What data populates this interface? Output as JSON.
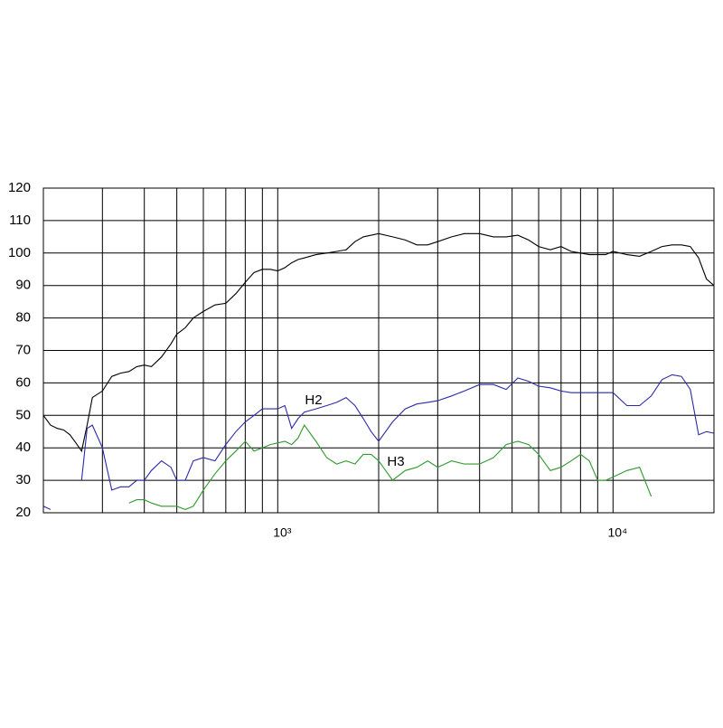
{
  "chart_data": {
    "type": "line",
    "log_x": true,
    "grid": true,
    "xlim": [
      200,
      20000
    ],
    "ylim": [
      20,
      120
    ],
    "yticks": [
      20,
      30,
      40,
      50,
      60,
      70,
      80,
      90,
      100,
      110,
      120
    ],
    "xticks": [
      {
        "value": 1000,
        "label": "10³"
      },
      {
        "value": 10000,
        "label": "10⁴"
      }
    ],
    "xgrid": [
      200,
      300,
      400,
      500,
      600,
      700,
      800,
      900,
      2000,
      3000,
      4000,
      5000,
      6000,
      7000,
      8000,
      9000,
      20000
    ],
    "x": [
      200,
      210,
      220,
      230,
      240,
      250,
      260,
      270,
      280,
      300,
      320,
      340,
      360,
      380,
      400,
      420,
      450,
      480,
      500,
      530,
      560,
      600,
      650,
      700,
      750,
      800,
      850,
      900,
      950,
      1000,
      1050,
      1100,
      1150,
      1200,
      1300,
      1400,
      1500,
      1600,
      1700,
      1800,
      1900,
      2000,
      2200,
      2400,
      2600,
      2800,
      3000,
      3300,
      3600,
      4000,
      4400,
      4800,
      5200,
      5600,
      6000,
      6500,
      7000,
      7500,
      8000,
      8500,
      9000,
      9500,
      10000,
      11000,
      12000,
      13000,
      14000,
      15000,
      16000,
      17000,
      18000,
      19000,
      20000
    ],
    "series": [
      {
        "color": "#000000",
        "values": [
          50,
          47,
          46,
          45.5,
          44,
          41.5,
          39,
          47,
          55.5,
          57.5,
          62,
          63,
          63.5,
          65,
          65.5,
          65,
          68,
          72,
          75,
          77,
          80,
          82,
          84,
          84.5,
          87.5,
          91,
          94,
          95,
          95,
          94.5,
          95.5,
          97,
          98,
          98.5,
          99.5,
          100,
          100.5,
          101,
          103.5,
          105,
          105.5,
          106,
          105,
          104,
          102.5,
          102.5,
          103.5,
          105,
          106,
          106,
          105,
          105,
          105.5,
          104,
          102,
          101,
          102,
          100.5,
          100,
          99.5,
          99.5,
          99.5,
          100.5,
          99.5,
          99,
          100.5,
          102,
          102.5,
          102.5,
          102,
          98.5,
          92,
          90
        ]
      },
      {
        "name": "H2",
        "color": "#2a2aa8",
        "values": [
          22,
          21,
          null,
          null,
          null,
          null,
          30,
          46,
          47,
          40,
          27,
          28,
          28,
          30,
          30,
          33,
          36,
          34,
          30,
          30,
          36,
          37,
          36,
          41,
          45,
          48,
          50,
          52,
          52,
          52,
          53,
          46,
          49,
          51,
          52,
          53,
          54,
          55.5,
          53,
          49,
          45,
          42,
          48,
          52,
          53.5,
          54,
          54.5,
          56,
          57.5,
          59.5,
          59.5,
          58,
          61.5,
          60.5,
          59,
          58.5,
          57.5,
          57,
          57,
          57,
          57,
          57,
          57,
          53,
          53,
          56,
          61,
          62.5,
          62,
          58,
          44,
          45,
          44.5
        ]
      },
      {
        "name": "H3",
        "color": "#2e9a2e",
        "values": [
          null,
          null,
          null,
          null,
          null,
          null,
          null,
          null,
          null,
          null,
          null,
          null,
          23,
          24,
          24,
          23,
          22,
          22,
          22,
          21,
          22,
          27,
          32,
          36,
          39,
          42,
          39,
          40,
          41,
          41.5,
          42,
          41,
          43,
          47,
          42,
          37,
          35,
          36,
          35,
          38,
          38,
          36,
          30,
          33,
          34,
          36,
          34,
          36,
          35,
          35,
          37,
          41,
          42,
          41,
          38,
          33,
          34,
          36,
          38,
          36,
          30,
          30,
          31,
          33,
          34,
          25,
          null,
          null,
          null,
          null,
          null,
          null,
          null
        ]
      }
    ]
  }
}
